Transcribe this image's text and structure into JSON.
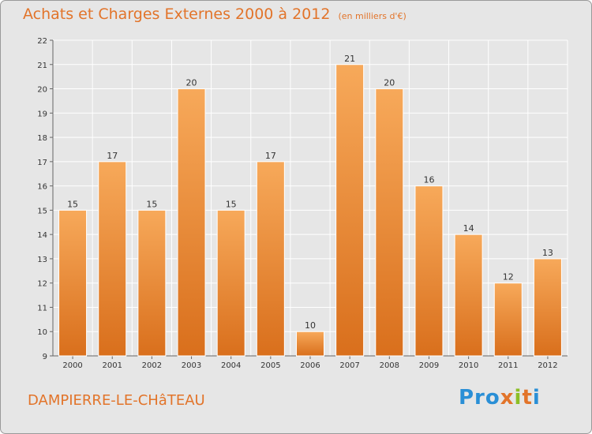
{
  "title": "Achats et Charges Externes 2000 à 2012",
  "unit": "(en milliers d'€)",
  "commune": "DAMPIERRE-LE-CHâTEAU",
  "logo": {
    "p1": "Pro",
    "p2": "x",
    "p3": "i",
    "p4": "t",
    "p5": "i"
  },
  "colors": {
    "bar_light": "#f7a95a",
    "bar_dark": "#d96f1c",
    "title": "#e2742a"
  },
  "chart_data": {
    "type": "bar",
    "categories": [
      "2000",
      "2001",
      "2002",
      "2003",
      "2004",
      "2005",
      "2006",
      "2007",
      "2008",
      "2009",
      "2010",
      "2011",
      "2012"
    ],
    "values": [
      15,
      17,
      15,
      20,
      15,
      17,
      10,
      21,
      20,
      16,
      14,
      12,
      13
    ],
    "ylim": [
      9,
      22
    ],
    "yticks": [
      9,
      10,
      11,
      12,
      13,
      14,
      15,
      16,
      17,
      18,
      19,
      20,
      21,
      22
    ],
    "grid": true
  }
}
